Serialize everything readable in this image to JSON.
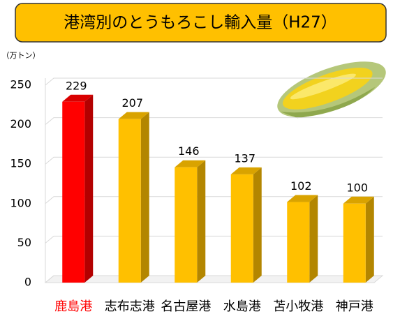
{
  "chart_data": {
    "type": "bar3d",
    "title": "港湾別のとうもろこし輸入量（H27）",
    "y_label": "（万トン）",
    "categories": [
      "鹿島港",
      "志布志港",
      "名古屋港",
      "水島港",
      "苫小牧港",
      "神戸港"
    ],
    "values": [
      229,
      207,
      146,
      137,
      102,
      100
    ],
    "colors": [
      "#ff0000",
      "#ffc000",
      "#ffc000",
      "#ffc000",
      "#ffc000",
      "#ffc000"
    ],
    "label_colors": [
      "#ff0000",
      "#000000",
      "#000000",
      "#000000",
      "#000000",
      "#000000"
    ],
    "ylim": [
      0,
      250
    ],
    "yticks": [
      0,
      50,
      100,
      150,
      200,
      250
    ],
    "grid": true
  }
}
